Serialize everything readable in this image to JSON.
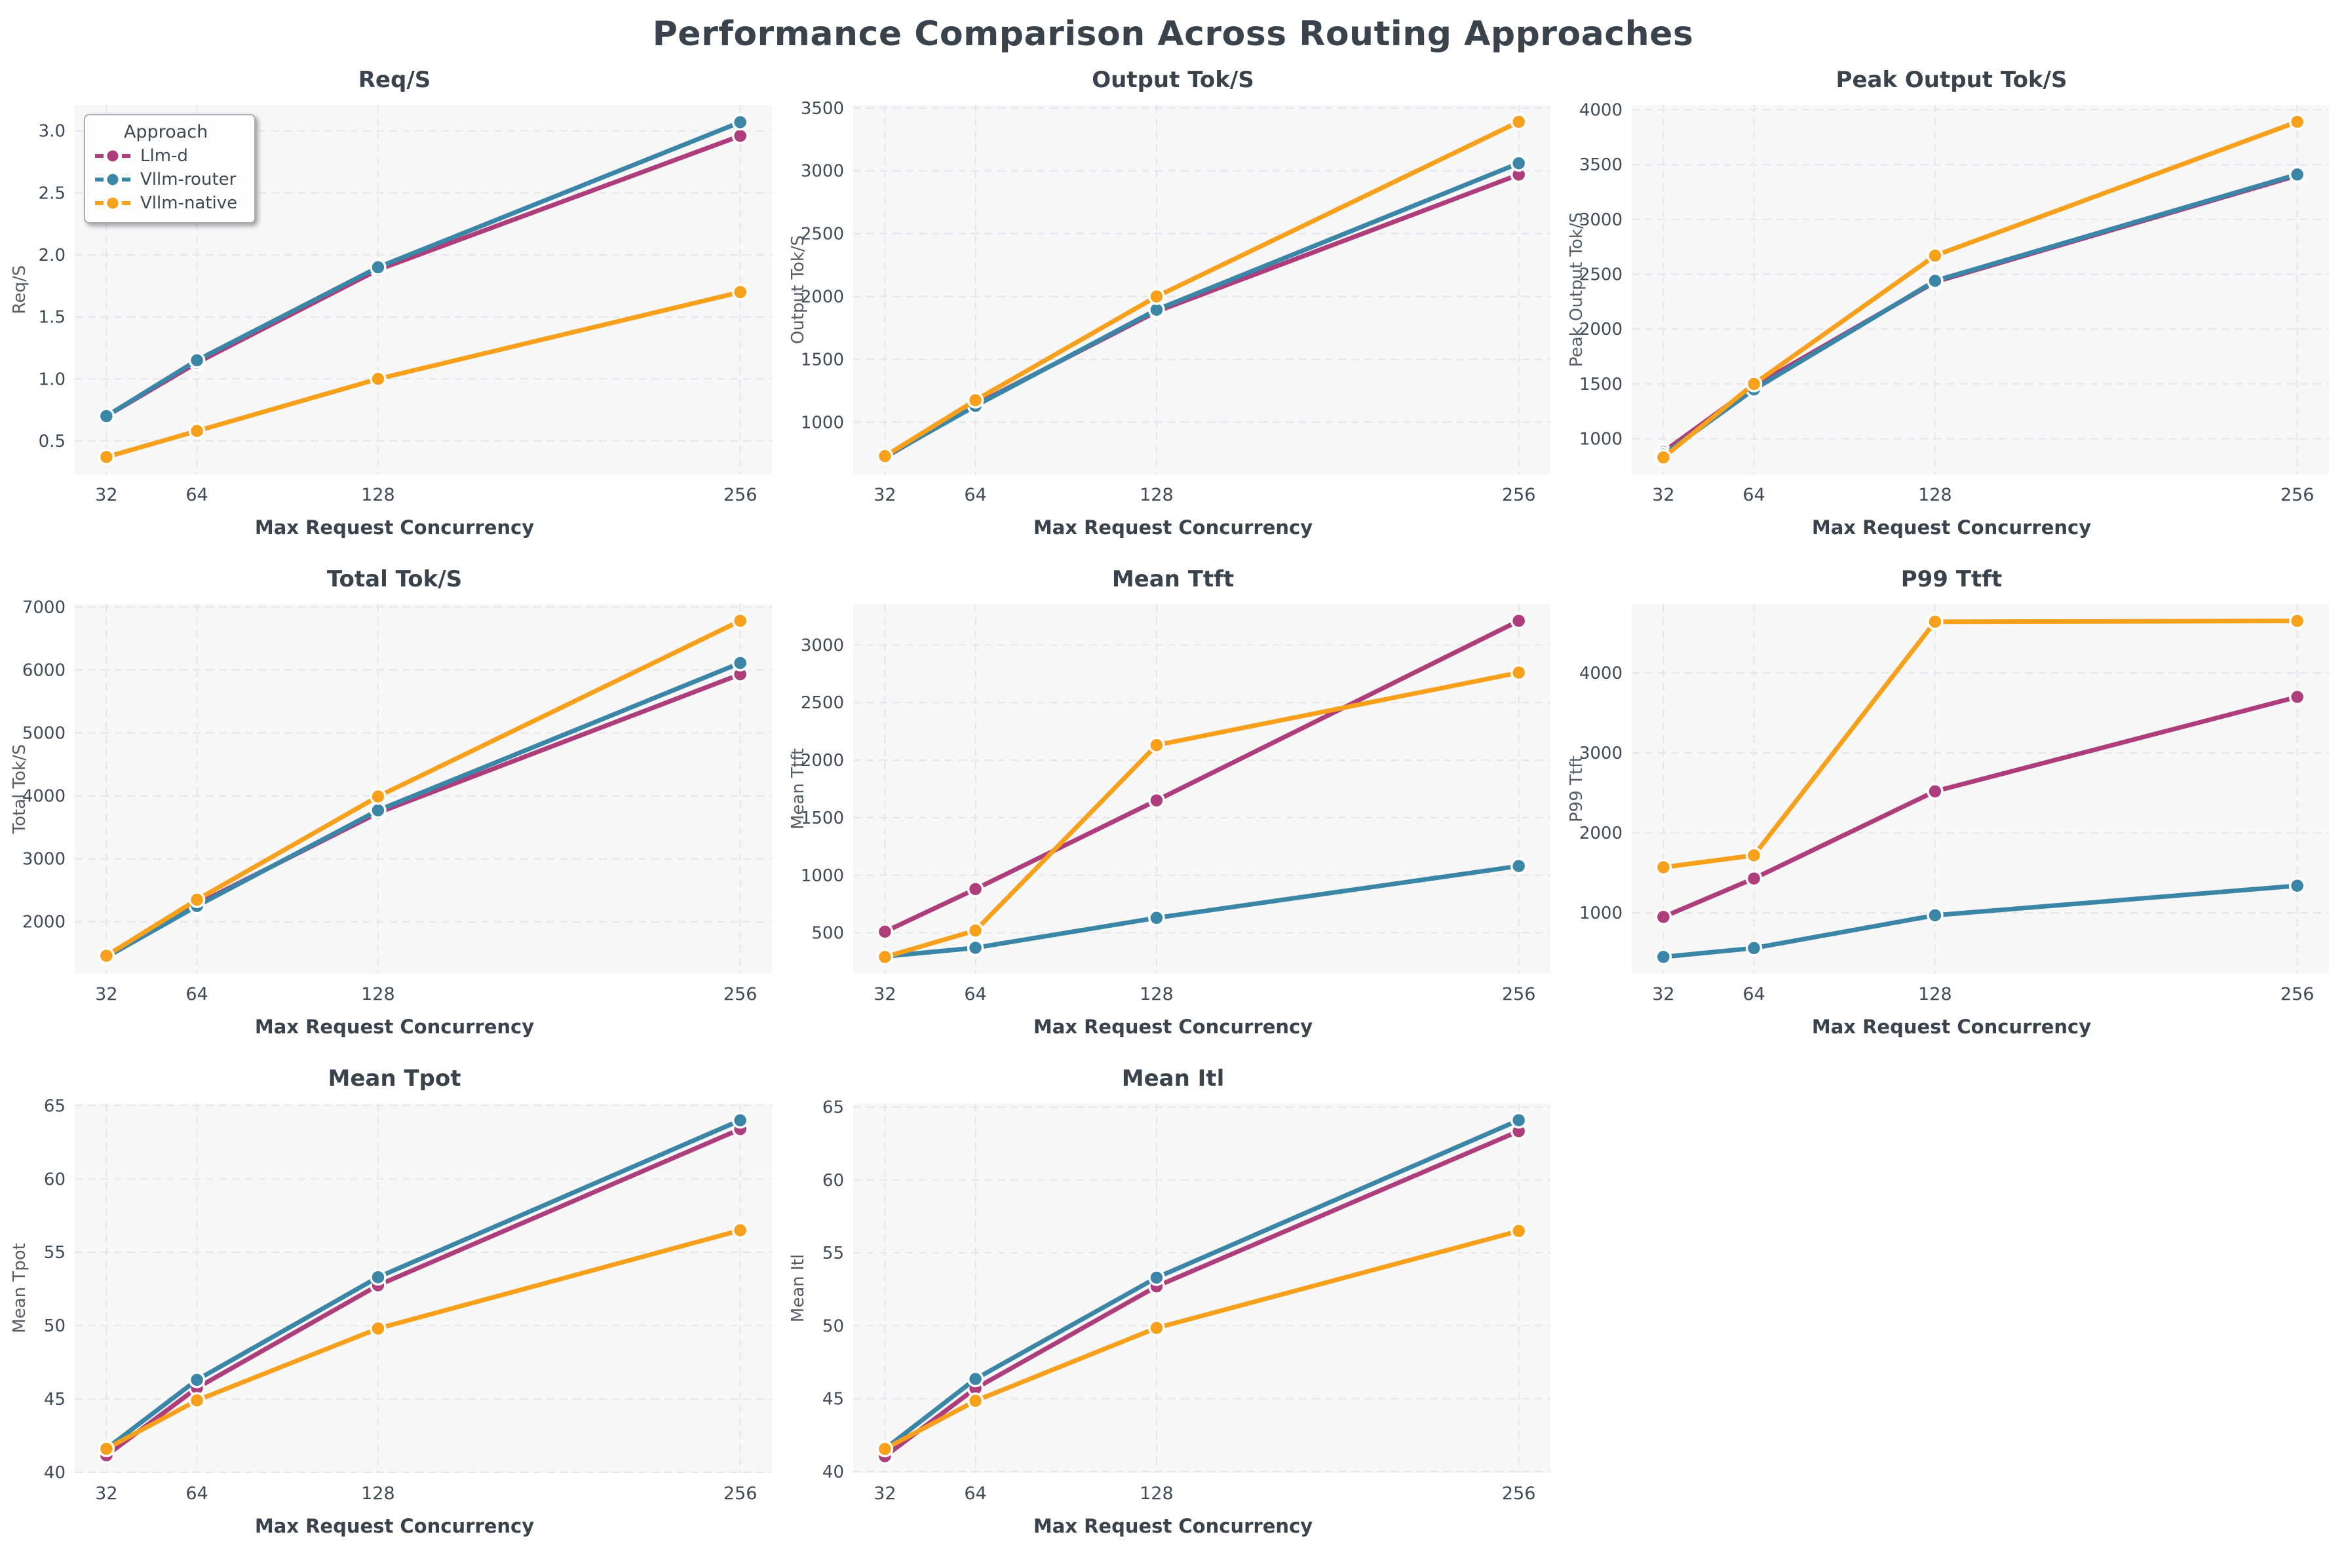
{
  "page_title": "Performance Comparison Across Routing Approaches",
  "colors": {
    "llm_d": "#ad3e7b",
    "vllm_router": "#3b86a6",
    "vllm_native": "#f6a01b",
    "axes_background": "#f7f7f8",
    "grid_line": "#e6e6ea",
    "title_text": "#3a424c",
    "tick_text": "#3f4a56",
    "ylabel_text": "#555d66",
    "marker_edge": "#ffffff"
  },
  "legend": {
    "title": "Approach",
    "entries": [
      {
        "label": "Llm-d",
        "color": "#ad3e7b"
      },
      {
        "label": "Vllm-router",
        "color": "#3b86a6"
      },
      {
        "label": "Vllm-native",
        "color": "#f6a01b"
      }
    ]
  },
  "icons": {
    "legend_marker": "dash-circle-dash"
  },
  "chart_data": [
    {
      "type": "line",
      "title": "Req/S",
      "xlabel": "Max Request Concurrency",
      "ylabel": "Req/S",
      "x": [
        32,
        64,
        128,
        256
      ],
      "xticks": [
        "32",
        "64",
        "128",
        "256"
      ],
      "xlim": [
        20.8,
        267.2
      ],
      "yticks": [
        0.5,
        1.0,
        1.5,
        2.0,
        2.5,
        3.0
      ],
      "ytick_labels": [
        "0.5",
        "1.0",
        "1.5",
        "2.0",
        "2.5",
        "3.0"
      ],
      "ylim": [
        0.23,
        3.21
      ],
      "grid": true,
      "legend_position": "upper-left",
      "series": [
        {
          "name": "Llm-d",
          "values": [
            0.7,
            1.13,
            1.88,
            2.96
          ]
        },
        {
          "name": "Vllm-router",
          "values": [
            0.7,
            1.15,
            1.9,
            3.07
          ]
        },
        {
          "name": "Vllm-native",
          "values": [
            0.37,
            0.58,
            1.0,
            1.7
          ]
        }
      ]
    },
    {
      "type": "line",
      "title": "Output Tok/S",
      "xlabel": "Max Request Concurrency",
      "ylabel": "Output Tok/S",
      "x": [
        32,
        64,
        128,
        256
      ],
      "xticks": [
        "32",
        "64",
        "128",
        "256"
      ],
      "xlim": [
        20.8,
        267.2
      ],
      "yticks": [
        1000,
        1500,
        2000,
        2500,
        3000,
        3500
      ],
      "ytick_labels": [
        "1000",
        "1500",
        "2000",
        "2500",
        "3000",
        "3500"
      ],
      "ylim": [
        585,
        3525
      ],
      "grid": true,
      "legend_position": "none",
      "series": [
        {
          "name": "Llm-d",
          "values": [
            720,
            1140,
            1880,
            2970
          ]
        },
        {
          "name": "Vllm-router",
          "values": [
            725,
            1130,
            1895,
            3060
          ]
        },
        {
          "name": "Vllm-native",
          "values": [
            730,
            1175,
            2000,
            3390
          ]
        }
      ]
    },
    {
      "type": "line",
      "title": "Peak Output Tok/S",
      "xlabel": "Max Request Concurrency",
      "ylabel": "Peak Output Tok/S",
      "x": [
        32,
        64,
        128,
        256
      ],
      "xticks": [
        "32",
        "64",
        "128",
        "256"
      ],
      "xlim": [
        20.8,
        267.2
      ],
      "yticks": [
        1000,
        1500,
        2000,
        2500,
        3000,
        3500,
        4000
      ],
      "ytick_labels": [
        "1000",
        "1500",
        "2000",
        "2500",
        "3000",
        "3500",
        "4000"
      ],
      "ylim": [
        675,
        4045
      ],
      "grid": true,
      "legend_position": "none",
      "series": [
        {
          "name": "Llm-d",
          "values": [
            880,
            1480,
            2430,
            3400
          ]
        },
        {
          "name": "Vllm-router",
          "values": [
            855,
            1450,
            2440,
            3410
          ]
        },
        {
          "name": "Vllm-native",
          "values": [
            830,
            1500,
            2670,
            3890
          ]
        }
      ]
    },
    {
      "type": "line",
      "title": "Total Tok/S",
      "xlabel": "Max Request Concurrency",
      "ylabel": "Total Tok/S",
      "x": [
        32,
        64,
        128,
        256
      ],
      "xticks": [
        "32",
        "64",
        "128",
        "256"
      ],
      "xlim": [
        20.8,
        267.2
      ],
      "yticks": [
        2000,
        3000,
        4000,
        5000,
        6000,
        7000
      ],
      "ytick_labels": [
        "2000",
        "3000",
        "4000",
        "5000",
        "6000",
        "7000"
      ],
      "ylim": [
        1175,
        7045
      ],
      "grid": true,
      "legend_position": "none",
      "series": [
        {
          "name": "Llm-d",
          "values": [
            1445,
            2280,
            3730,
            5930
          ]
        },
        {
          "name": "Vllm-router",
          "values": [
            1440,
            2250,
            3770,
            6110
          ]
        },
        {
          "name": "Vllm-native",
          "values": [
            1460,
            2350,
            3990,
            6780
          ]
        }
      ]
    },
    {
      "type": "line",
      "title": "Mean Ttft",
      "xlabel": "Max Request Concurrency",
      "ylabel": "Mean Ttft",
      "x": [
        32,
        64,
        128,
        256
      ],
      "xticks": [
        "32",
        "64",
        "128",
        "256"
      ],
      "xlim": [
        20.8,
        267.2
      ],
      "yticks": [
        500,
        1000,
        1500,
        2000,
        2500,
        3000
      ],
      "ytick_labels": [
        "500",
        "1000",
        "1500",
        "2000",
        "2500",
        "3000"
      ],
      "ylim": [
        145,
        3355
      ],
      "grid": true,
      "legend_position": "none",
      "series": [
        {
          "name": "Llm-d",
          "values": [
            510,
            880,
            1650,
            3210
          ]
        },
        {
          "name": "Vllm-router",
          "values": [
            295,
            370,
            630,
            1080
          ]
        },
        {
          "name": "Vllm-native",
          "values": [
            290,
            520,
            2130,
            2760
          ]
        }
      ]
    },
    {
      "type": "line",
      "title": "P99 Ttft",
      "xlabel": "Max Request Concurrency",
      "ylabel": "P99 Ttft",
      "x": [
        32,
        64,
        128,
        256
      ],
      "xticks": [
        "32",
        "64",
        "128",
        "256"
      ],
      "xlim": [
        20.8,
        267.2
      ],
      "yticks": [
        1000,
        2000,
        3000,
        4000
      ],
      "ytick_labels": [
        "1000",
        "2000",
        "3000",
        "4000"
      ],
      "ylim": [
        240,
        4860
      ],
      "grid": true,
      "legend_position": "none",
      "series": [
        {
          "name": "Llm-d",
          "values": [
            950,
            1430,
            2520,
            3700
          ]
        },
        {
          "name": "Vllm-router",
          "values": [
            450,
            560,
            970,
            1340
          ]
        },
        {
          "name": "Vllm-native",
          "values": [
            1570,
            1720,
            4640,
            4650
          ]
        }
      ]
    },
    {
      "type": "line",
      "title": "Mean Tpot",
      "xlabel": "Max Request Concurrency",
      "ylabel": "Mean Tpot",
      "x": [
        32,
        64,
        128,
        256
      ],
      "xticks": [
        "32",
        "64",
        "128",
        "256"
      ],
      "xlim": [
        20.8,
        267.2
      ],
      "yticks": [
        40,
        45,
        50,
        55,
        60,
        65
      ],
      "ytick_labels": [
        "40",
        "45",
        "50",
        "55",
        "60",
        "65"
      ],
      "ylim": [
        39.95,
        65.15
      ],
      "grid": true,
      "legend_position": "none",
      "series": [
        {
          "name": "Llm-d",
          "values": [
            41.15,
            45.75,
            52.75,
            63.4
          ]
        },
        {
          "name": "Vllm-router",
          "values": [
            41.6,
            46.3,
            53.3,
            64.0
          ]
        },
        {
          "name": "Vllm-native",
          "values": [
            41.6,
            44.9,
            49.8,
            56.5
          ]
        }
      ]
    },
    {
      "type": "line",
      "title": "Mean Itl",
      "xlabel": "Max Request Concurrency",
      "ylabel": "Mean Itl",
      "x": [
        32,
        64,
        128,
        256
      ],
      "xticks": [
        "32",
        "64",
        "128",
        "256"
      ],
      "xlim": [
        20.8,
        267.2
      ],
      "yticks": [
        40,
        45,
        50,
        55,
        60,
        65
      ],
      "ytick_labels": [
        "40",
        "45",
        "50",
        "55",
        "60",
        "65"
      ],
      "ylim": [
        39.9,
        65.25
      ],
      "grid": true,
      "legend_position": "none",
      "series": [
        {
          "name": "Llm-d",
          "values": [
            41.05,
            45.7,
            52.7,
            63.35
          ]
        },
        {
          "name": "Vllm-router",
          "values": [
            41.55,
            46.35,
            53.3,
            64.1
          ]
        },
        {
          "name": "Vllm-native",
          "values": [
            41.55,
            44.85,
            49.85,
            56.5
          ]
        }
      ]
    }
  ]
}
